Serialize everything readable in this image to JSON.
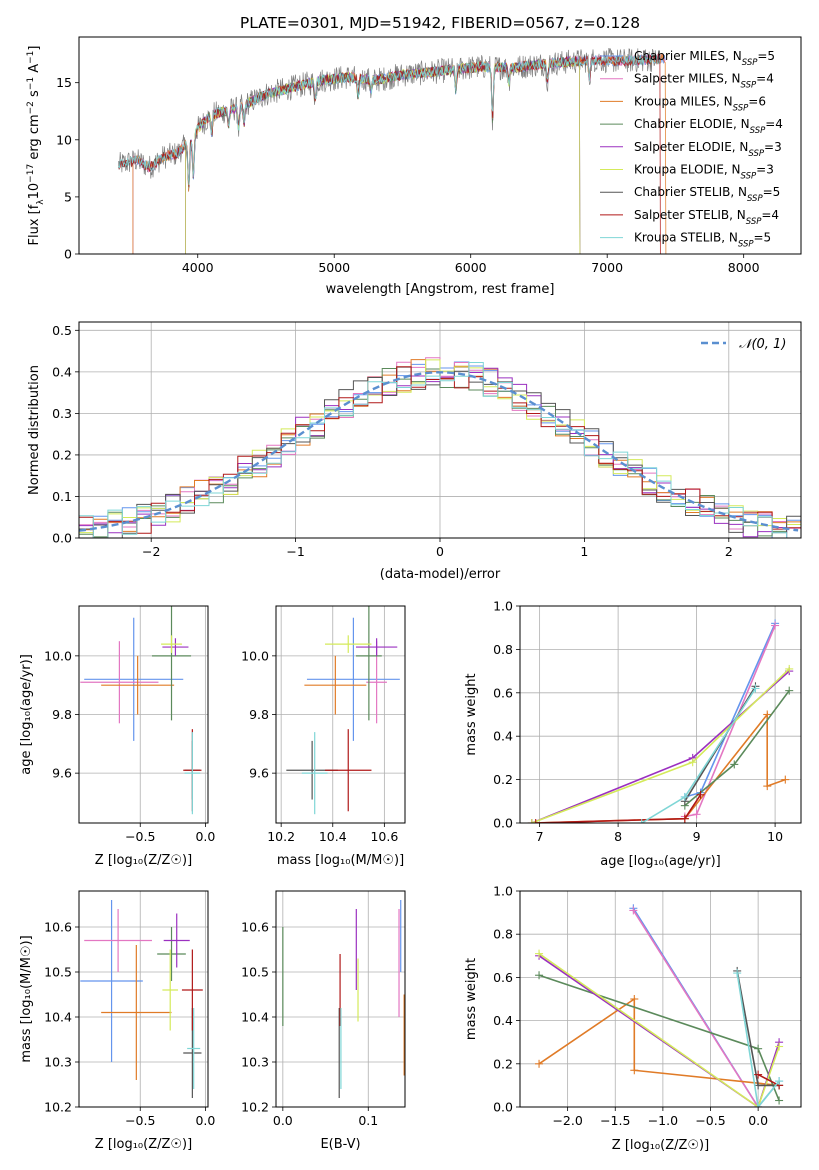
{
  "figure": {
    "title": "PLATE=0301, MJD=51942, FIBERID=0567, z=0.128"
  },
  "colors": {
    "Chabrier MILES": "#6495ed",
    "Salpeter MILES": "#e377c2",
    "Kroupa MILES": "#e07b27",
    "Chabrier ELODIE": "#5b8a5b",
    "Salpeter ELODIE": "#9b30c0",
    "Kroupa ELODIE": "#d4ea5a",
    "Chabrier STELIB": "#555555",
    "Salpeter STELIB": "#b01818",
    "Kroupa STELIB": "#7fd6d6",
    "data": "#808080",
    "gaussian": "#5a8fd0"
  },
  "chart_data": [
    {
      "id": "spectrum",
      "type": "line",
      "xlabel": "wavelength [Angstrom, rest frame]",
      "ylabel": "Flux [f_λ10^{-17} erg cm^{-2} s^{-1} A^{-1}]",
      "xlim": [
        3130,
        8420
      ],
      "ylim": [
        0,
        19
      ],
      "xticks": [
        4000,
        5000,
        6000,
        7000,
        8000
      ],
      "yticks": [
        0,
        5,
        10,
        15
      ],
      "grid": false,
      "legend_position": "top-right",
      "legend": [
        {
          "name": "Chabrier MILES",
          "nssp": "5"
        },
        {
          "name": "Salpeter MILES",
          "nssp": "4"
        },
        {
          "name": "Kroupa MILES",
          "nssp": "6"
        },
        {
          "name": "Chabrier ELODIE",
          "nssp": "4"
        },
        {
          "name": "Salpeter ELODIE",
          "nssp": "3"
        },
        {
          "name": "Kroupa ELODIE",
          "nssp": "3"
        },
        {
          "name": "Chabrier STELIB",
          "nssp": "5"
        },
        {
          "name": "Salpeter STELIB",
          "nssp": "4"
        },
        {
          "name": "Kroupa STELIB",
          "nssp": "5"
        }
      ],
      "data_ranges": {
        "Chabrier MILES": [
          3525,
          7430
        ],
        "Salpeter MILES": [
          3525,
          7430
        ],
        "Kroupa MILES": [
          3525,
          7430
        ],
        "Chabrier ELODIE": [
          3910,
          6800
        ],
        "Salpeter ELODIE": [
          3910,
          6800
        ],
        "Kroupa ELODIE": [
          3910,
          6800
        ],
        "Chabrier STELIB": [
          3420,
          7390
        ],
        "Salpeter STELIB": [
          3420,
          7390
        ],
        "Kroupa STELIB": [
          3420,
          7390
        ],
        "data": [
          3420,
          7390
        ]
      },
      "continuum": {
        "x": [
          3420,
          3550,
          3650,
          3750,
          3850,
          3950,
          4000,
          4100,
          4200,
          4300,
          4500,
          4700,
          4900,
          5100,
          5300,
          5500,
          5700,
          5900,
          6100,
          6300,
          6500,
          6700,
          6900,
          7100,
          7300,
          7400
        ],
        "y": [
          7.8,
          8.2,
          7.6,
          8.5,
          8.8,
          10.0,
          11.0,
          12.2,
          12.5,
          12.8,
          14.0,
          14.6,
          15.2,
          15.5,
          15.2,
          15.7,
          15.9,
          16.2,
          16.4,
          16.3,
          16.6,
          16.8,
          17.0,
          16.9,
          17.0,
          17.1
        ]
      }
    },
    {
      "id": "residuals",
      "type": "line",
      "xlabel": "(data-model)/error",
      "ylabel": "Normed distribution",
      "xlim": [
        -2.5,
        2.5
      ],
      "ylim": [
        0,
        0.52
      ],
      "xticks": [
        -2,
        -1,
        0,
        1,
        2
      ],
      "yticks": [
        0.0,
        0.1,
        0.2,
        0.3,
        0.4,
        0.5
      ],
      "grid": true,
      "legend_position": "top-right",
      "gaussian_label": "𝒩(0, 1)",
      "bin_width": 0.1,
      "histogram_note": "step histograms per model closely following a normal curve"
    },
    {
      "id": "age_vs_Z",
      "type": "scatter",
      "xlabel": "Z [log₁₀(Z/Z☉)]",
      "ylabel": "age  [log₁₀(age/yr)]",
      "xlim": [
        -0.97,
        0.02
      ],
      "ylim": [
        9.43,
        10.17
      ],
      "xticks": [
        -0.5,
        0.0
      ],
      "yticks": [
        9.6,
        9.8,
        10.0
      ],
      "grid": true,
      "points": [
        {
          "model": "Chabrier MILES",
          "x": -0.55,
          "y": 9.92,
          "xerr": 0.38,
          "yerr": 0.21
        },
        {
          "model": "Salpeter MILES",
          "x": -0.66,
          "y": 9.91,
          "xerr": 0.3,
          "yerr": 0.14
        },
        {
          "model": "Kroupa MILES",
          "x": -0.52,
          "y": 9.9,
          "xerr": 0.28,
          "yerr": 0.1
        },
        {
          "model": "Chabrier ELODIE",
          "x": -0.26,
          "y": 10.0,
          "xerr": 0.15,
          "yerr": 0.22
        },
        {
          "model": "Salpeter ELODIE",
          "x": -0.23,
          "y": 10.03,
          "xerr": 0.1,
          "yerr": 0.03
        },
        {
          "model": "Kroupa ELODIE",
          "x": -0.26,
          "y": 10.04,
          "xerr": 0.08,
          "yerr": 0.03
        },
        {
          "model": "Chabrier STELIB",
          "x": -0.1,
          "y": 9.61,
          "xerr": 0.06,
          "yerr": 0.1
        },
        {
          "model": "Salpeter STELIB",
          "x": -0.1,
          "y": 9.61,
          "xerr": 0.07,
          "yerr": 0.14
        },
        {
          "model": "Kroupa STELIB",
          "x": -0.1,
          "y": 9.6,
          "xerr": 0.06,
          "yerr": 0.14
        }
      ]
    },
    {
      "id": "age_vs_mass",
      "type": "scatter",
      "xlabel": "mass [log₁₀(M/M☉)]",
      "ylabel": "",
      "xlim": [
        10.18,
        10.68
      ],
      "ylim": [
        9.43,
        10.17
      ],
      "xticks": [
        10.2,
        10.4,
        10.6
      ],
      "yticks": [
        9.6,
        9.8,
        10.0
      ],
      "grid": true,
      "points": [
        {
          "model": "Chabrier MILES",
          "x": 10.48,
          "y": 9.92,
          "xerr": 0.18,
          "yerr": 0.21
        },
        {
          "model": "Salpeter MILES",
          "x": 10.57,
          "y": 9.91,
          "xerr": 0.04,
          "yerr": 0.14
        },
        {
          "model": "Kroupa MILES",
          "x": 10.41,
          "y": 9.9,
          "xerr": 0.12,
          "yerr": 0.1
        },
        {
          "model": "Chabrier ELODIE",
          "x": 10.54,
          "y": 10.0,
          "xerr": 0.05,
          "yerr": 0.22
        },
        {
          "model": "Salpeter ELODIE",
          "x": 10.57,
          "y": 10.03,
          "xerr": 0.08,
          "yerr": 0.03
        },
        {
          "model": "Kroupa ELODIE",
          "x": 10.46,
          "y": 10.04,
          "xerr": 0.09,
          "yerr": 0.03
        },
        {
          "model": "Chabrier STELIB",
          "x": 10.32,
          "y": 9.61,
          "xerr": 0.1,
          "yerr": 0.1
        },
        {
          "model": "Salpeter STELIB",
          "x": 10.46,
          "y": 9.61,
          "xerr": 0.09,
          "yerr": 0.14
        },
        {
          "model": "Kroupa STELIB",
          "x": 10.33,
          "y": 9.6,
          "xerr": 0.05,
          "yerr": 0.14
        }
      ]
    },
    {
      "id": "weight_vs_age",
      "type": "line",
      "xlabel": "age  [log₁₀(age/yr)]",
      "ylabel": "mass weight",
      "xlim": [
        6.75,
        10.33
      ],
      "ylim": [
        0,
        1
      ],
      "xticks": [
        7,
        8,
        9,
        10
      ],
      "yticks": [
        0.0,
        0.2,
        0.4,
        0.6,
        0.8,
        1.0
      ],
      "grid": true,
      "series": [
        {
          "model": "Chabrier MILES",
          "x": [
            8.85,
            9.05,
            10.0
          ],
          "y": [
            0.12,
            0.14,
            0.92
          ]
        },
        {
          "model": "Salpeter MILES",
          "x": [
            8.85,
            9.0,
            10.0
          ],
          "y": [
            0.03,
            0.04,
            0.91
          ]
        },
        {
          "model": "Kroupa MILES",
          "x": [
            6.9,
            8.85,
            9.9,
            9.9,
            10.13
          ],
          "y": [
            0.0,
            0.02,
            0.5,
            0.17,
            0.2
          ]
        },
        {
          "model": "Chabrier ELODIE",
          "x": [
            8.85,
            9.48,
            10.18
          ],
          "y": [
            0.08,
            0.27,
            0.61
          ]
        },
        {
          "model": "Salpeter ELODIE",
          "x": [
            6.9,
            8.95,
            10.18
          ],
          "y": [
            0.0,
            0.3,
            0.7
          ]
        },
        {
          "model": "Kroupa ELODIE",
          "x": [
            6.9,
            8.95,
            10.18
          ],
          "y": [
            0.0,
            0.28,
            0.71
          ]
        },
        {
          "model": "Chabrier STELIB",
          "x": [
            8.85,
            9.75
          ],
          "y": [
            0.1,
            0.63
          ]
        },
        {
          "model": "Salpeter STELIB",
          "x": [
            6.95,
            8.85,
            9.05
          ],
          "y": [
            0.0,
            0.02,
            0.13
          ]
        },
        {
          "model": "Kroupa STELIB",
          "x": [
            8.3,
            8.85,
            9.75
          ],
          "y": [
            0.0,
            0.12,
            0.62
          ]
        }
      ]
    },
    {
      "id": "mass_vs_Z",
      "type": "scatter",
      "xlabel": "Z [log₁₀(Z/Z☉)]",
      "ylabel": "mass [log₁₀(M/M☉)]",
      "xlim": [
        -0.97,
        0.02
      ],
      "ylim": [
        10.2,
        10.68
      ],
      "xticks": [
        -0.5,
        0.0
      ],
      "yticks": [
        10.2,
        10.3,
        10.4,
        10.5,
        10.6
      ],
      "grid": true,
      "points": [
        {
          "model": "Chabrier MILES",
          "x": -0.72,
          "y": 10.48,
          "xerr": 0.24,
          "yerr": 0.18
        },
        {
          "model": "Salpeter MILES",
          "x": -0.67,
          "y": 10.57,
          "xerr": 0.26,
          "yerr": 0.07
        },
        {
          "model": "Kroupa MILES",
          "x": -0.53,
          "y": 10.41,
          "xerr": 0.27,
          "yerr": 0.15
        },
        {
          "model": "Chabrier ELODIE",
          "x": -0.26,
          "y": 10.54,
          "xerr": 0.11,
          "yerr": 0.06
        },
        {
          "model": "Salpeter ELODIE",
          "x": -0.22,
          "y": 10.57,
          "xerr": 0.1,
          "yerr": 0.06
        },
        {
          "model": "Kroupa ELODIE",
          "x": -0.27,
          "y": 10.46,
          "xerr": 0.06,
          "yerr": 0.09
        },
        {
          "model": "Chabrier STELIB",
          "x": -0.1,
          "y": 10.32,
          "xerr": 0.07,
          "yerr": 0.1
        },
        {
          "model": "Salpeter STELIB",
          "x": -0.1,
          "y": 10.46,
          "xerr": 0.08,
          "yerr": 0.09
        },
        {
          "model": "Kroupa STELIB",
          "x": -0.09,
          "y": 10.33,
          "xerr": 0.05,
          "yerr": 0.09
        }
      ]
    },
    {
      "id": "mass_vs_ebv",
      "type": "scatter",
      "xlabel": "E(B-V)",
      "ylabel": "",
      "xlim": [
        -0.008,
        0.143
      ],
      "ylim": [
        10.2,
        10.68
      ],
      "xticks": [
        0.0,
        0.1
      ],
      "yticks": [
        10.2,
        10.3,
        10.4,
        10.5,
        10.6
      ],
      "grid": true,
      "points": [
        {
          "model": "Chabrier MILES",
          "x": 0.138,
          "y": 10.58,
          "xerr": 0,
          "yerr": 0.08
        },
        {
          "model": "Salpeter MILES",
          "x": 0.136,
          "y": 10.52,
          "xerr": 0,
          "yerr": 0.12
        },
        {
          "model": "Kroupa MILES",
          "x": 0.142,
          "y": 10.36,
          "xerr": 0,
          "yerr": 0.09
        },
        {
          "model": "Chabrier ELODIE",
          "x": 0.0,
          "y": 10.49,
          "xerr": 0,
          "yerr": 0.11
        },
        {
          "model": "Salpeter ELODIE",
          "x": 0.086,
          "y": 10.55,
          "xerr": 0,
          "yerr": 0.09
        },
        {
          "model": "Kroupa ELODIE",
          "x": 0.088,
          "y": 10.46,
          "xerr": 0,
          "yerr": 0.07
        },
        {
          "model": "Chabrier STELIB",
          "x": 0.066,
          "y": 10.32,
          "xerr": 0,
          "yerr": 0.1
        },
        {
          "model": "Salpeter STELIB",
          "x": 0.067,
          "y": 10.46,
          "xerr": 0,
          "yerr": 0.08
        },
        {
          "model": "Kroupa STELIB",
          "x": 0.068,
          "y": 10.33,
          "xerr": 0,
          "yerr": 0.09
        }
      ]
    },
    {
      "id": "weight_vs_Z",
      "type": "line",
      "xlabel": "Z [log₁₀(Z/Z☉)]",
      "ylabel": "mass weight",
      "xlim": [
        -2.5,
        0.45
      ],
      "ylim": [
        0,
        1
      ],
      "xticks": [
        -2.0,
        -1.5,
        -1.0,
        -0.5,
        0.0
      ],
      "yticks": [
        0.0,
        0.2,
        0.4,
        0.6,
        0.8,
        1.0
      ],
      "grid": true,
      "series": [
        {
          "model": "Chabrier MILES",
          "x": [
            -1.31,
            0.0,
            0.22
          ],
          "y": [
            0.92,
            0.0,
            0.12
          ]
        },
        {
          "model": "Salpeter MILES",
          "x": [
            -1.31,
            0.0
          ],
          "y": [
            0.91,
            0.0
          ]
        },
        {
          "model": "Kroupa MILES",
          "x": [
            -2.3,
            -1.3,
            -1.3,
            0.22
          ],
          "y": [
            0.2,
            0.5,
            0.17,
            0.1
          ]
        },
        {
          "model": "Chabrier ELODIE",
          "x": [
            -2.3,
            0.0,
            0.22
          ],
          "y": [
            0.61,
            0.27,
            0.03
          ]
        },
        {
          "model": "Salpeter ELODIE",
          "x": [
            -2.3,
            0.0,
            0.22
          ],
          "y": [
            0.7,
            0.0,
            0.3
          ]
        },
        {
          "model": "Kroupa ELODIE",
          "x": [
            -2.3,
            0.0,
            0.22
          ],
          "y": [
            0.71,
            0.0,
            0.28
          ]
        },
        {
          "model": "Chabrier STELIB",
          "x": [
            -0.22,
            0.0,
            0.22
          ],
          "y": [
            0.63,
            0.1,
            0.1
          ]
        },
        {
          "model": "Salpeter STELIB",
          "x": [
            0.0,
            0.22
          ],
          "y": [
            0.15,
            0.1
          ]
        },
        {
          "model": "Kroupa STELIB",
          "x": [
            -0.22,
            0.0,
            0.22
          ],
          "y": [
            0.62,
            0.0,
            0.12
          ]
        }
      ]
    }
  ]
}
